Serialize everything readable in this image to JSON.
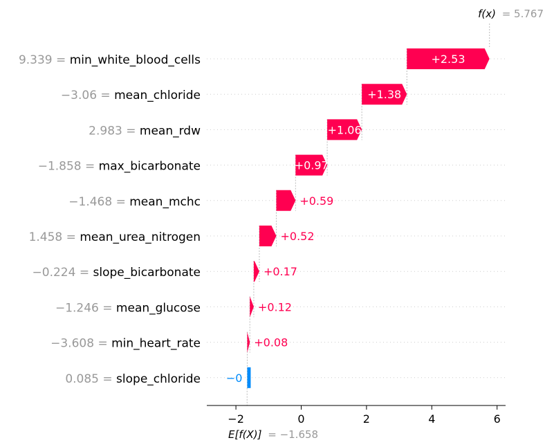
{
  "chart_data": {
    "type": "waterfall",
    "xlim": [
      -3,
      6.3
    ],
    "x_ticks": [
      -2,
      0,
      2,
      4,
      6
    ],
    "x_tick_labels": [
      "−2",
      "0",
      "2",
      "4",
      "6"
    ],
    "base_value": -1.658,
    "base_label": "E[f(X)]",
    "base_value_text": "= −1.658",
    "output_value": 5.767,
    "output_label": "f(x)",
    "output_value_text": "= 5.767",
    "positive_color": "#ff0051",
    "negative_color": "#008bfb",
    "features": [
      {
        "value_text": "9.339",
        "name": "min_white_blood_cells",
        "contribution": 2.53,
        "label": "+2.53"
      },
      {
        "value_text": "−3.06",
        "name": "mean_chloride",
        "contribution": 1.38,
        "label": "+1.38"
      },
      {
        "value_text": "2.983",
        "name": "mean_rdw",
        "contribution": 1.06,
        "label": "+1.06"
      },
      {
        "value_text": "−1.858",
        "name": "max_bicarbonate",
        "contribution": 0.97,
        "label": "+0.97"
      },
      {
        "value_text": "−1.468",
        "name": "mean_mchc",
        "contribution": 0.59,
        "label": "+0.59"
      },
      {
        "value_text": "1.458",
        "name": "mean_urea_nitrogen",
        "contribution": 0.52,
        "label": "+0.52"
      },
      {
        "value_text": "−0.224",
        "name": "slope_bicarbonate",
        "contribution": 0.17,
        "label": "+0.17"
      },
      {
        "value_text": "−1.246",
        "name": "mean_glucose",
        "contribution": 0.12,
        "label": "+0.12"
      },
      {
        "value_text": "−3.608",
        "name": "min_heart_rate",
        "contribution": 0.08,
        "label": "+0.08"
      },
      {
        "value_text": "0.085",
        "name": "slope_chloride",
        "contribution": -0.004,
        "label": "−0"
      }
    ]
  }
}
